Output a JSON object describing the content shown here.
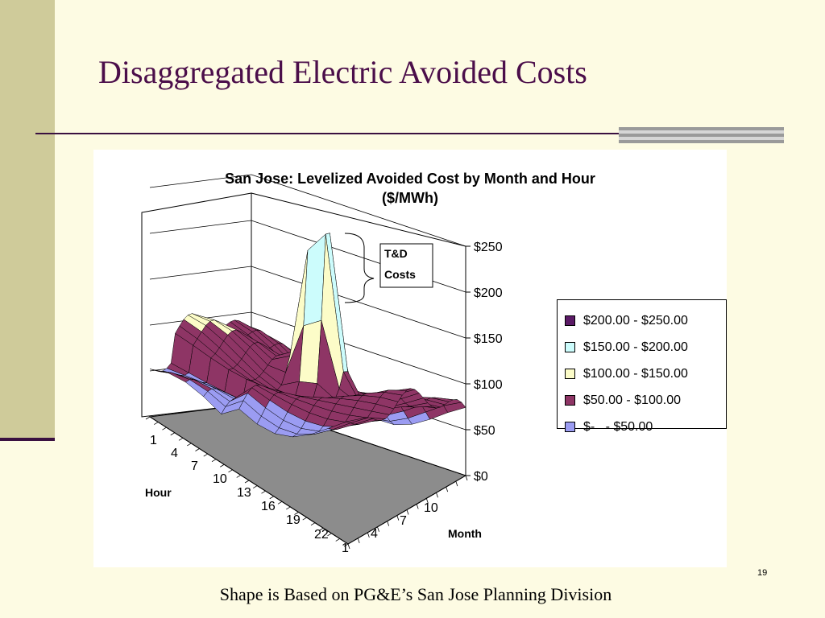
{
  "slide": {
    "title": "Disaggregated Electric Avoided Costs",
    "footer": "Shape is Based on PG&E’s San Jose Planning Division",
    "page_number": "19"
  },
  "colors": {
    "title": "#4b0e4a",
    "background": "#fdfbe3",
    "side_bar": "#cfcb9a",
    "floor": "#8c8c8c"
  },
  "chart_data": {
    "type": "surface-3d",
    "title_line1": "San Jose: Levelized Avoided Cost by Month and Hour",
    "title_line2": "($/MWh)",
    "zlabel_ticks": [
      "$0",
      "$50",
      "$100",
      "$150",
      "$200",
      "$250"
    ],
    "zlim": [
      0,
      250
    ],
    "hour_label": "Hour",
    "hour_ticks": [
      "1",
      "4",
      "7",
      "10",
      "13",
      "16",
      "19",
      "22"
    ],
    "month_label": "Month",
    "month_ticks": [
      "1",
      "4",
      "7",
      "10"
    ],
    "annotation": "T&D Costs",
    "legend_position": "right",
    "legend": [
      {
        "label": "$200.00 - $250.00",
        "color": "#5b1a66"
      },
      {
        "label": "$150.00 - $200.00",
        "color": "#ccfcfc"
      },
      {
        "label": "$100.00 - $150.00",
        "color": "#fcfcc8"
      },
      {
        "label": "$50.00 - $100.00",
        "color": "#8e3565"
      },
      {
        "label": "$-   - $50.00",
        "color": "#9b9cf2"
      }
    ]
  }
}
